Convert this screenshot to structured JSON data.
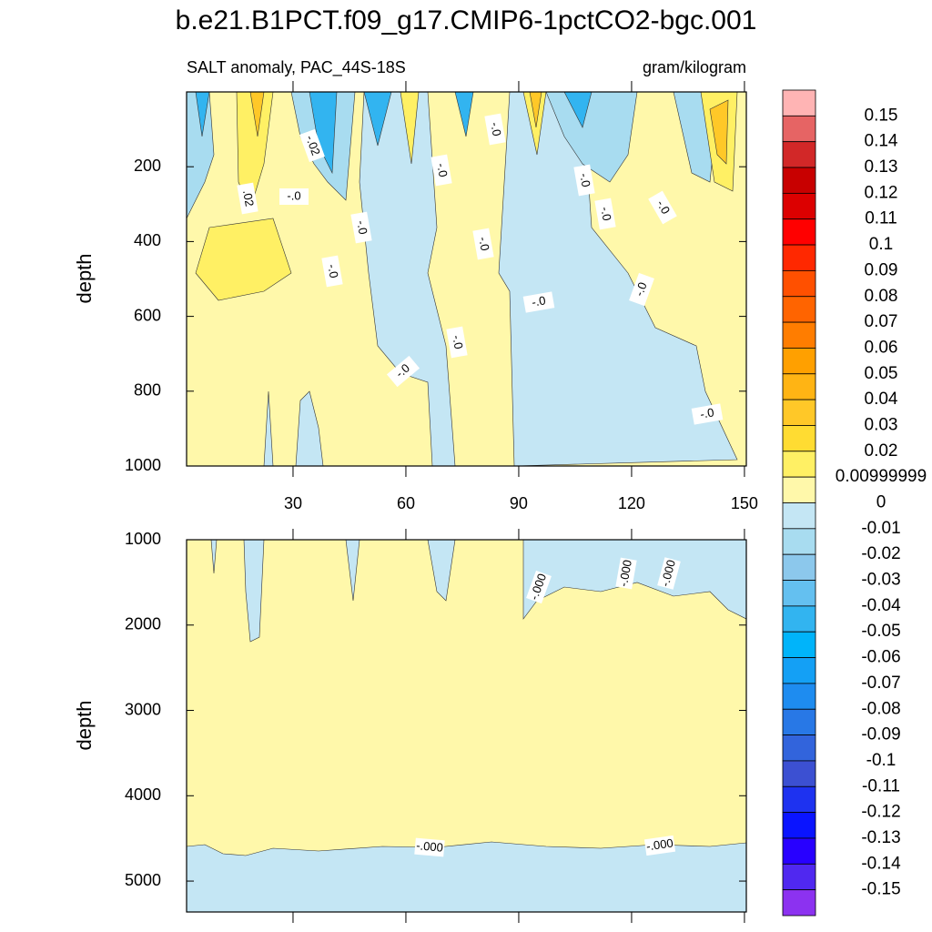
{
  "title": "b.e21.B1PCT.f09_g17.CMIP6-1pctCO2-bgc.001",
  "chart_data": [
    {
      "type": "contour",
      "subtitle_left": "SALT anomaly, PAC_44S-18S",
      "subtitle_right": "gram/kilogram",
      "y_label": "depth",
      "xlim": [
        1.7,
        150.5
      ],
      "xticks": [
        30,
        60,
        90,
        120,
        150
      ],
      "ylim": [
        0,
        1000
      ],
      "yticks": [
        200,
        400,
        600,
        800,
        1000
      ],
      "y_inverted": true,
      "contour_labels": [
        "-.02",
        ".02",
        "-.0",
        "-.0",
        "-.0",
        "-.0",
        "-.0",
        "-.0",
        "-.0",
        "-.0",
        "-.0",
        "-.0",
        "-.0",
        "-.0",
        "-.0",
        "-.0"
      ]
    },
    {
      "type": "contour",
      "y_label": "depth",
      "xlim": [
        1.7,
        150.5
      ],
      "xticks": [
        30,
        60,
        90,
        120,
        150
      ],
      "ylim": [
        1000,
        5362
      ],
      "yticks": [
        1000,
        2000,
        3000,
        4000,
        5000
      ],
      "y_inverted": true,
      "contour_labels": [
        "-.000",
        "-.000",
        "-.000",
        "-.000",
        "-.000"
      ]
    }
  ],
  "colorbar": {
    "levels": [
      0.15,
      0.14,
      0.13,
      0.12,
      0.11,
      0.1,
      0.09,
      0.08,
      0.07,
      0.06,
      0.05,
      0.04,
      0.03,
      0.02,
      0.00999999,
      0,
      -0.01,
      -0.02,
      -0.03,
      -0.04,
      -0.05,
      -0.06,
      -0.07,
      -0.08,
      -0.09,
      -0.1,
      -0.11,
      -0.12,
      -0.13,
      -0.14,
      -0.15
    ],
    "colors": [
      "#ffb4b4",
      "#e66464",
      "#d22828",
      "#c80000",
      "#dc0000",
      "#ff0000",
      "#ff2800",
      "#ff5000",
      "#ff6400",
      "#ff7d00",
      "#ffa000",
      "#ffb414",
      "#ffc828",
      "#ffdc32",
      "#fff064",
      "#fff8aa",
      "#c4e6f4",
      "#a8dcf0",
      "#8cc8ec",
      "#64c0f0",
      "#32b4f0",
      "#00b4fa",
      "#14a0f5",
      "#1e8cf0",
      "#2878e6",
      "#3264dc",
      "#3c50d2",
      "#1e32f0",
      "#0a14ff",
      "#2800ff",
      "#5028f0",
      "#8c32f0"
    ]
  }
}
